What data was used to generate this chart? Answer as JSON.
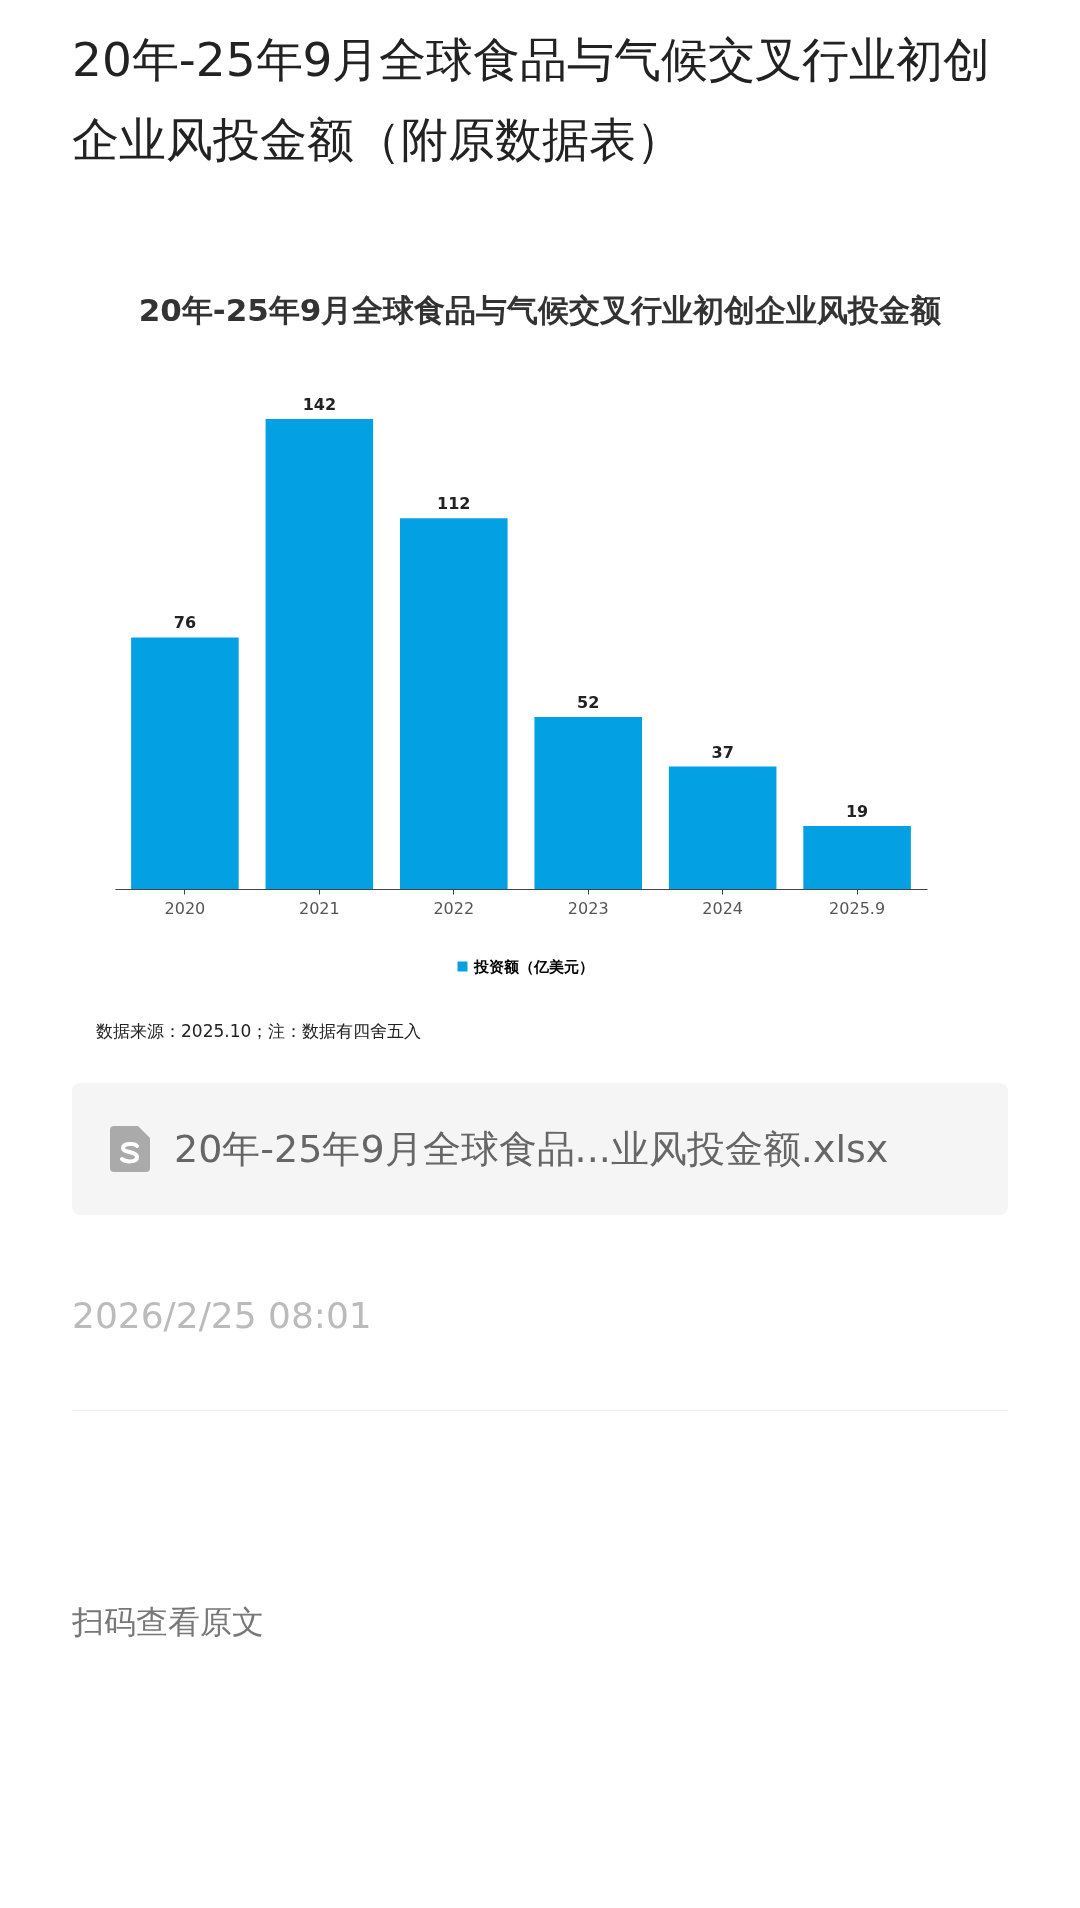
{
  "chart_data": {
    "type": "bar",
    "title": "20年-25年9月全球食品与气候交叉行业初创企业风投金额（附原数据表）",
    "subtitle": "20年-25年9月全球食品与气候交叉行业初创企业风投金额",
    "categories": [
      "2020",
      "2021",
      "2022",
      "2023",
      "2024",
      "2025.9"
    ],
    "series": [
      {
        "name": "投资额（亿美元）",
        "color": "#03a0e3",
        "values": [
          76,
          142,
          112,
          52,
          37,
          19
        ]
      }
    ],
    "data_labels": true,
    "legend": "bottom",
    "annotations": [
      "数据来源：2025.10；注：数据有四舍五入",
      "20年-25年9月全球食品...业风投金额.xlsx",
      "2026/2/25 08:01",
      "扫码查看原文"
    ]
  }
}
